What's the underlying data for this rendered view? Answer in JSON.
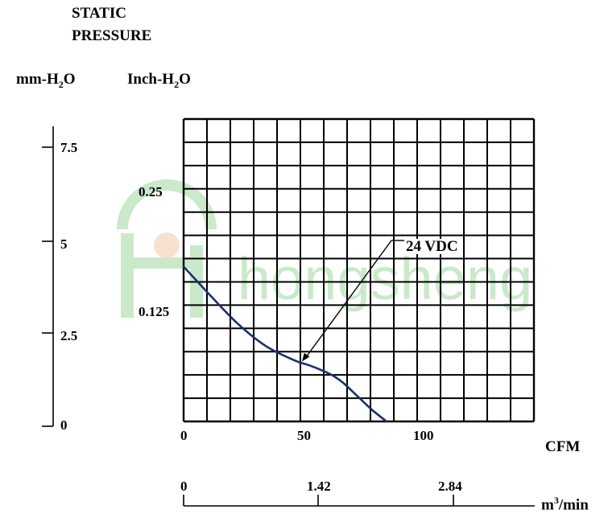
{
  "labels": {
    "ylabel_line1": "STATIC",
    "ylabel_line2": "PRESSURE",
    "mm_unit_main": "mm-H",
    "mm_unit_sub": "2",
    "mm_unit_end": "O",
    "inch_unit_main": "Inch-H",
    "inch_unit_sub": "2",
    "inch_unit_end": "O",
    "cfm_unit": "CFM",
    "m3_unit_main": "m",
    "m3_unit_sup": "3",
    "m3_unit_end": "/min"
  },
  "watermark": {
    "text": "hongsheng",
    "color": "#8fd08f"
  },
  "chart_data": {
    "type": "line",
    "x_axis_cfm": {
      "ticks": [
        "0",
        "50",
        "100"
      ],
      "range": [
        0,
        145
      ]
    },
    "x_axis_m3min": {
      "ticks": [
        "0",
        "1.42",
        "2.84"
      ],
      "range": [
        0,
        4.1
      ]
    },
    "y_axis_mm_h2o": {
      "ticks": [
        "0",
        "2.5",
        "5",
        "7.5"
      ],
      "range": [
        0,
        8
      ]
    },
    "y_axis_inch_h2o": {
      "ticks": [
        "0.125",
        "0.25"
      ],
      "range": [
        0,
        0.3125
      ]
    },
    "grid": true,
    "series": [
      {
        "name": "24 VDC",
        "color": "#1a2f6e",
        "x_cfm": [
          0,
          10,
          22,
          34,
          46,
          52,
          58,
          62,
          66,
          72,
          78,
          84
        ],
        "y_inch_h2o": [
          0.16,
          0.133,
          0.102,
          0.078,
          0.063,
          0.058,
          0.052,
          0.047,
          0.04,
          0.026,
          0.012,
          0.0
        ]
      }
    ],
    "annotations": [
      {
        "text": "24 VDC",
        "points_to_cfm": 49,
        "points_to_inch_h2o": 0.062
      }
    ]
  }
}
